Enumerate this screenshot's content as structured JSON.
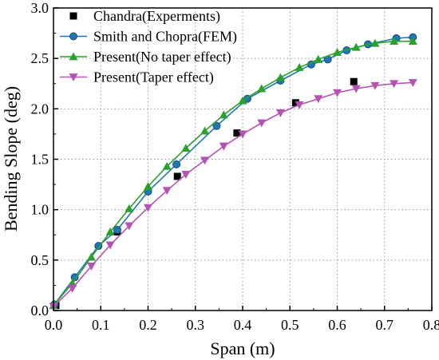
{
  "chart_data": {
    "type": "line",
    "xlabel": "Span (m)",
    "ylabel": "Bending Slope (deg)",
    "xlim": [
      0.0,
      0.8
    ],
    "ylim": [
      0.0,
      3.0
    ],
    "xticks": [
      "0.0",
      "0.1",
      "0.2",
      "0.3",
      "0.4",
      "0.5",
      "0.6",
      "0.7",
      "0.8"
    ],
    "yticks": [
      "0.0",
      "0.5",
      "1.0",
      "1.5",
      "2.0",
      "2.5",
      "3.0"
    ],
    "grid": true,
    "legend_position": "top-left",
    "series": [
      {
        "name": "Chandra(Experments)",
        "style": "scatter",
        "marker": "square",
        "color": "#000000",
        "x": [
          0.005,
          0.135,
          0.262,
          0.388,
          0.512,
          0.635
        ],
        "y": [
          0.05,
          0.78,
          1.33,
          1.76,
          2.06,
          2.27
        ]
      },
      {
        "name": "Smith and Chopra(FEM)",
        "style": "line",
        "marker": "circle",
        "color": "#1f77b4",
        "x": [
          0.002,
          0.045,
          0.095,
          0.135,
          0.2,
          0.26,
          0.345,
          0.41,
          0.48,
          0.545,
          0.58,
          0.62,
          0.665,
          0.725,
          0.76
        ],
        "y": [
          0.06,
          0.33,
          0.64,
          0.8,
          1.18,
          1.45,
          1.83,
          2.1,
          2.28,
          2.44,
          2.49,
          2.58,
          2.64,
          2.7,
          2.71
        ]
      },
      {
        "name": "Present(No taper effect)",
        "style": "line",
        "marker": "triangle-up",
        "color": "#2ca02c",
        "x": [
          0.0,
          0.04,
          0.08,
          0.12,
          0.16,
          0.2,
          0.24,
          0.28,
          0.32,
          0.36,
          0.4,
          0.44,
          0.48,
          0.52,
          0.56,
          0.6,
          0.64,
          0.68,
          0.72,
          0.76
        ],
        "y": [
          0.05,
          0.27,
          0.53,
          0.78,
          1.01,
          1.23,
          1.43,
          1.61,
          1.78,
          1.94,
          2.08,
          2.2,
          2.31,
          2.41,
          2.49,
          2.56,
          2.61,
          2.65,
          2.67,
          2.67
        ]
      },
      {
        "name": "Present(Taper effect)",
        "style": "line",
        "marker": "triangle-down",
        "color": "#b553b5",
        "x": [
          0.0,
          0.04,
          0.08,
          0.12,
          0.16,
          0.2,
          0.24,
          0.28,
          0.32,
          0.36,
          0.4,
          0.44,
          0.48,
          0.52,
          0.56,
          0.6,
          0.64,
          0.68,
          0.72,
          0.76
        ],
        "y": [
          0.04,
          0.22,
          0.44,
          0.65,
          0.84,
          1.02,
          1.19,
          1.35,
          1.49,
          1.63,
          1.75,
          1.86,
          1.96,
          2.04,
          2.1,
          2.16,
          2.2,
          2.23,
          2.25,
          2.26
        ]
      }
    ]
  }
}
